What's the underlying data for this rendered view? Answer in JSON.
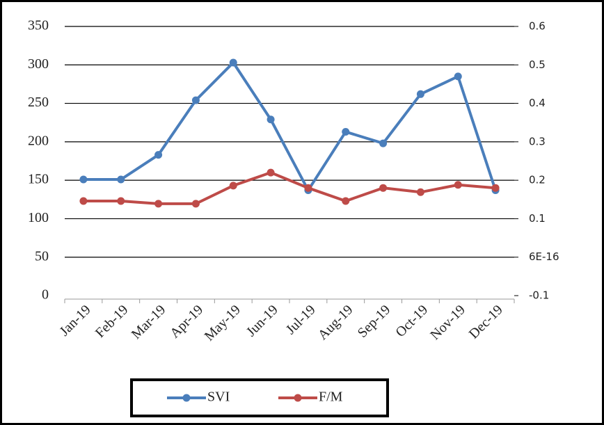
{
  "chart_data": {
    "type": "line",
    "categories": [
      "Jan-19",
      "Feb-19",
      "Mar-19",
      "Apr-19",
      "May-19",
      "Jun-19",
      "Jul-19",
      "Aug-19",
      "Sep-19",
      "Oct-19",
      "Nov-19",
      "Dec-19"
    ],
    "series": [
      {
        "name": "SVI",
        "color": "#4a7ebb",
        "values": [
          151,
          151,
          183,
          254,
          303,
          229,
          137,
          213,
          198,
          262,
          285,
          137
        ]
      },
      {
        "name": "F/M",
        "color": "#be4b48",
        "axis": "y2",
        "values": [
          0.146,
          0.146,
          0.139,
          0.139,
          0.186,
          0.22,
          0.18,
          0.146,
          0.18,
          0.169,
          0.188,
          0.18
        ]
      }
    ],
    "ylim": [
      0,
      350
    ],
    "yticks": [
      0,
      50,
      100,
      150,
      200,
      250,
      300,
      350
    ],
    "y2lim": [
      -0.1,
      0.6
    ],
    "y2ticks": [
      -0.1,
      {
        "value": 6e-16,
        "label": "6E-16"
      },
      0.1,
      0.2,
      0.3,
      0.4,
      0.5,
      0.6
    ],
    "grid": true,
    "legend": "bottom"
  }
}
